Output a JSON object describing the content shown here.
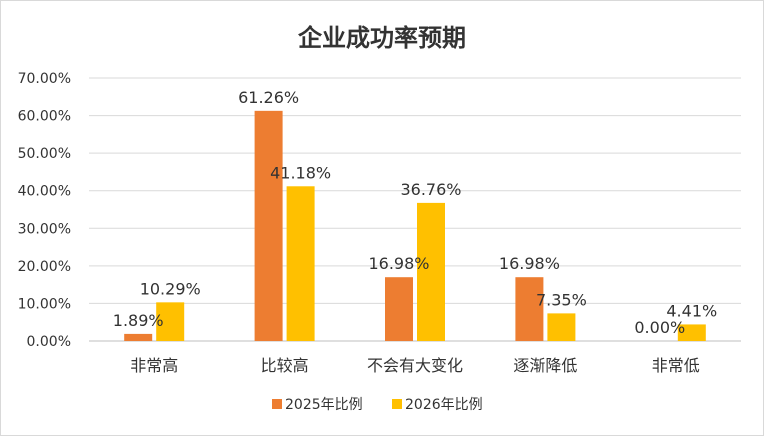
{
  "chart_data": {
    "type": "bar",
    "title": "企业成功率预期",
    "categories": [
      "非常高",
      "比较高",
      "不会有大变化",
      "逐渐降低",
      "非常低"
    ],
    "series": [
      {
        "name": "2025年比例",
        "color": "#ED7D31",
        "values": [
          1.89,
          61.26,
          16.98,
          16.98,
          0.0
        ],
        "labels": [
          "1.89%",
          "61.26%",
          "16.98%",
          "16.98%",
          "0.00%"
        ]
      },
      {
        "name": "2026年比例",
        "color": "#FFC000",
        "values": [
          10.29,
          41.18,
          36.76,
          7.35,
          4.41
        ],
        "labels": [
          "10.29%",
          "41.18%",
          "36.76%",
          "7.35%",
          "4.41%"
        ]
      }
    ],
    "ylim": [
      0,
      70
    ],
    "yticks": [
      "0.00%",
      "10.00%",
      "20.00%",
      "30.00%",
      "40.00%",
      "50.00%",
      "60.00%",
      "70.00%"
    ],
    "grid": true,
    "legend": "bottom"
  }
}
